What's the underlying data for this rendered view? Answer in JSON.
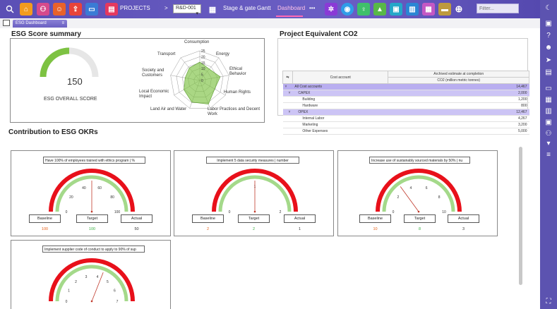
{
  "topbar": {
    "projects_label": "PROJECTS",
    "separator": ">",
    "project_selected": "R&D-001",
    "tabs": [
      "Stage & gate",
      "Gantt",
      "Dashboard"
    ],
    "active_tab": "Dashboard",
    "more": "•••",
    "filter_placeholder": "Filter...",
    "colors": {
      "bar": "#5b4fb5",
      "active_underline": "#ff69b4"
    }
  },
  "tabstrip": {
    "dashboard_tab": "ESG Dashboard"
  },
  "esg": {
    "title": "ESG Score summary",
    "score_value": "150",
    "score_label": "ESG OVERALL SCORE",
    "radar_axes": [
      "Consumption",
      "Energy",
      "Ethical Behavior",
      "Human Rights",
      "Labor Practices and Decent Work",
      "Land Air and Water",
      "Local Economic Impact",
      "Society and Customers",
      "Transport"
    ],
    "radar_ticks": [
      "25",
      "20",
      "15",
      "10",
      "5",
      "0"
    ]
  },
  "co2": {
    "title": "Project Equivalent CO2",
    "col_account": "Cost account",
    "col_estimate_line1": "Archived estimate at completion",
    "col_estimate_line2": "CO2 (million metric tonnes)",
    "rows": [
      {
        "label": "All Cost accounts",
        "value": "14,467"
      },
      {
        "label": "CAPEX",
        "value": "2,000"
      },
      {
        "label": "Building",
        "value": "1,200"
      },
      {
        "label": "Hardware",
        "value": "800"
      },
      {
        "label": "OPEX",
        "value": "12,467"
      },
      {
        "label": "Internal Labor",
        "value": "4,267"
      },
      {
        "label": "Marketing",
        "value": "3,200"
      },
      {
        "label": "Other Expenses",
        "value": "5,000"
      }
    ]
  },
  "okr": {
    "title": "Contribution to ESG OKRs",
    "buttons": {
      "baseline": "Baseline",
      "target": "Target",
      "actual": "Actual"
    },
    "cards": [
      {
        "title": "Have 100% of employees trained with ethics program | %",
        "ticks": [
          "0",
          "20",
          "40",
          "60",
          "80",
          "100"
        ],
        "baseline": "100",
        "target": "100",
        "actual": "50"
      },
      {
        "title": "Implement 5 data security measures | number",
        "ticks": [
          "0",
          "1",
          "2"
        ],
        "baseline": "2",
        "target": "2",
        "actual": "1"
      },
      {
        "title": "Increase use of sustainably sourced materials by 50% | nu",
        "ticks": [
          "0",
          "2",
          "4",
          "6",
          "8",
          "10"
        ],
        "baseline": "10",
        "target": "8",
        "actual": "3"
      },
      {
        "title": "Implement supplier code of conduct to apply to 90% of sup",
        "ticks": [
          "0",
          "1",
          "2",
          "3",
          "4",
          "5",
          "6",
          "7"
        ],
        "baseline": "",
        "target": "",
        "actual": ""
      }
    ],
    "colors": {
      "outer_arc": "#e8101a",
      "inner_arc": "#a4d98a",
      "baseline_value": "#e8621a",
      "target_value": "#3cb043",
      "needle": "#c0392b"
    }
  }
}
